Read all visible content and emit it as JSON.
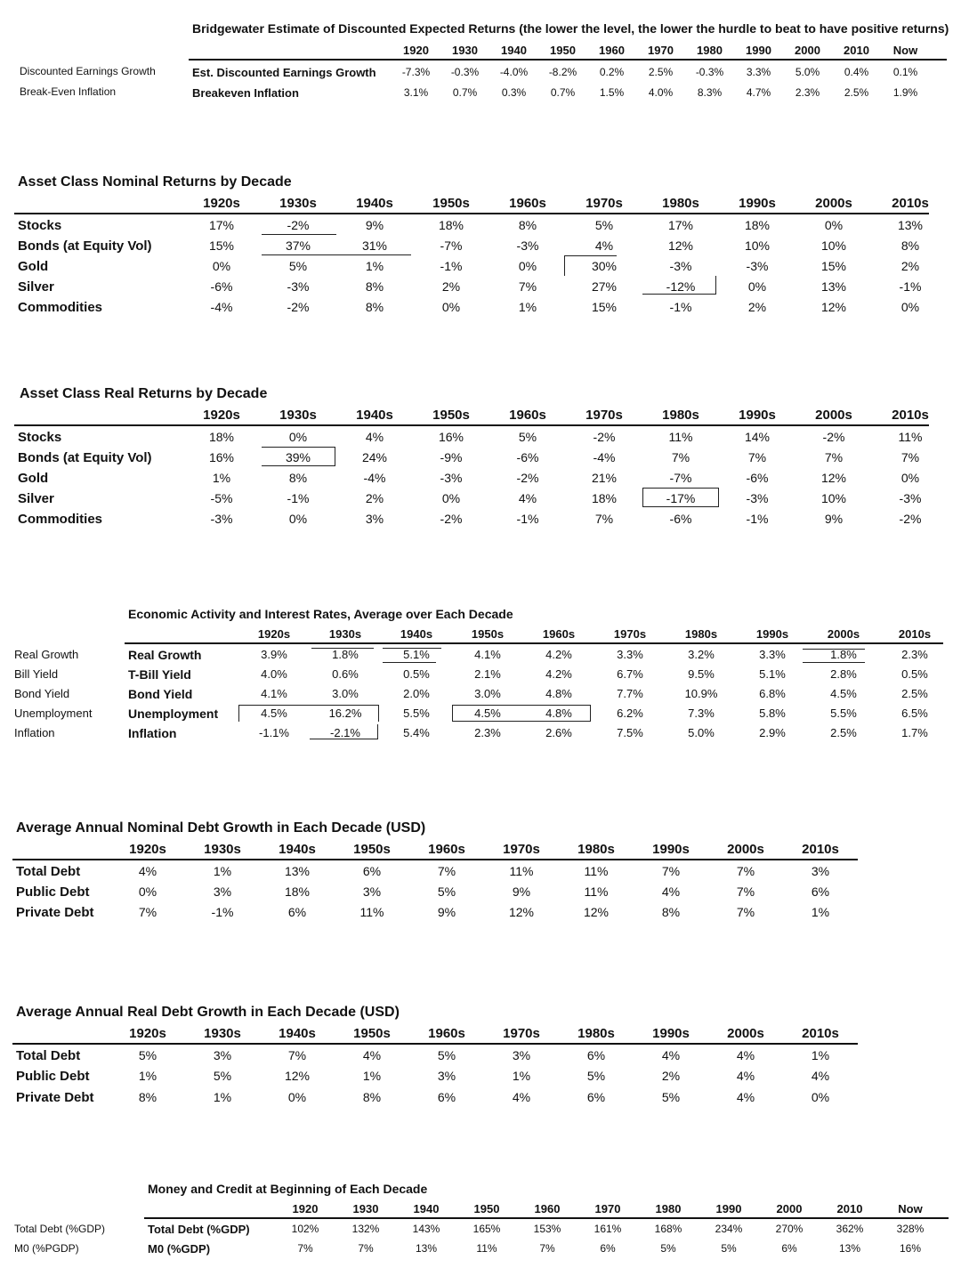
{
  "bridgewater": {
    "title": "Bridgewater Estimate of Discounted Expected Returns (the lower the level, the lower the hurdle to beat to have positive returns)",
    "columns": [
      "1920",
      "1930",
      "1940",
      "1950",
      "1960",
      "1970",
      "1980",
      "1990",
      "2000",
      "2010",
      "Now"
    ],
    "rows": [
      {
        "outer": "Discounted Earnings Growth",
        "label": "Est. Discounted Earnings Growth",
        "values": [
          "-7.3%",
          "-0.3%",
          "-4.0%",
          "-8.2%",
          "0.2%",
          "2.5%",
          "-0.3%",
          "3.3%",
          "5.0%",
          "0.4%",
          "0.1%"
        ]
      },
      {
        "outer": "Break-Even Inflation",
        "label": "Breakeven Inflation",
        "values": [
          "3.1%",
          "0.7%",
          "0.3%",
          "0.7%",
          "1.5%",
          "4.0%",
          "8.3%",
          "4.7%",
          "2.3%",
          "2.5%",
          "1.9%"
        ]
      }
    ]
  },
  "nominal": {
    "title": "Asset Class Nominal Returns by Decade",
    "columns": [
      "1920s",
      "1930s",
      "1940s",
      "1950s",
      "1960s",
      "1970s",
      "1980s",
      "1990s",
      "2000s",
      "2010s"
    ],
    "rows": [
      {
        "label": "Stocks",
        "values": [
          "17%",
          "-2%",
          "9%",
          "18%",
          "8%",
          "5%",
          "17%",
          "18%",
          "0%",
          "13%"
        ]
      },
      {
        "label": "Bonds (at Equity Vol)",
        "values": [
          "15%",
          "37%",
          "31%",
          "-7%",
          "-3%",
          "4%",
          "12%",
          "10%",
          "10%",
          "8%"
        ]
      },
      {
        "label": "Gold",
        "values": [
          "0%",
          "5%",
          "1%",
          "-1%",
          "0%",
          "30%",
          "-3%",
          "-3%",
          "15%",
          "2%"
        ]
      },
      {
        "label": "Silver",
        "values": [
          "-6%",
          "-3%",
          "8%",
          "2%",
          "7%",
          "27%",
          "-12%",
          "0%",
          "13%",
          "-1%"
        ]
      },
      {
        "label": "Commodities",
        "values": [
          "-4%",
          "-2%",
          "8%",
          "0%",
          "1%",
          "15%",
          "-1%",
          "2%",
          "12%",
          "0%"
        ]
      }
    ]
  },
  "real": {
    "title": "Asset Class Real Returns by Decade",
    "columns": [
      "1920s",
      "1930s",
      "1940s",
      "1950s",
      "1960s",
      "1970s",
      "1980s",
      "1990s",
      "2000s",
      "2010s"
    ],
    "rows": [
      {
        "label": "Stocks",
        "values": [
          "18%",
          "0%",
          "4%",
          "16%",
          "5%",
          "-2%",
          "11%",
          "14%",
          "-2%",
          "11%"
        ]
      },
      {
        "label": "Bonds (at Equity Vol)",
        "values": [
          "16%",
          "39%",
          "24%",
          "-9%",
          "-6%",
          "-4%",
          "7%",
          "7%",
          "7%",
          "7%"
        ]
      },
      {
        "label": "Gold",
        "values": [
          "1%",
          "8%",
          "-4%",
          "-3%",
          "-2%",
          "21%",
          "-7%",
          "-6%",
          "12%",
          "0%"
        ]
      },
      {
        "label": "Silver",
        "values": [
          "-5%",
          "-1%",
          "2%",
          "0%",
          "4%",
          "18%",
          "-17%",
          "-3%",
          "10%",
          "-3%"
        ]
      },
      {
        "label": "Commodities",
        "values": [
          "-3%",
          "0%",
          "3%",
          "-2%",
          "-1%",
          "7%",
          "-6%",
          "-1%",
          "9%",
          "-2%"
        ]
      }
    ]
  },
  "economic": {
    "title": "Economic Activity and Interest Rates, Average over Each Decade",
    "columns": [
      "1920s",
      "1930s",
      "1940s",
      "1950s",
      "1960s",
      "1970s",
      "1980s",
      "1990s",
      "2000s",
      "2010s"
    ],
    "rows": [
      {
        "outer": "Real Growth",
        "label": "Real Growth",
        "values": [
          "3.9%",
          "1.8%",
          "5.1%",
          "4.1%",
          "4.2%",
          "3.3%",
          "3.2%",
          "3.3%",
          "1.8%",
          "2.3%"
        ]
      },
      {
        "outer": "Bill Yield",
        "label": "T-Bill Yield",
        "values": [
          "4.0%",
          "0.6%",
          "0.5%",
          "2.1%",
          "4.2%",
          "6.7%",
          "9.5%",
          "5.1%",
          "2.8%",
          "0.5%"
        ]
      },
      {
        "outer": "Bond Yield",
        "label": "Bond Yield",
        "values": [
          "4.1%",
          "3.0%",
          "2.0%",
          "3.0%",
          "4.8%",
          "7.7%",
          "10.9%",
          "6.8%",
          "4.5%",
          "2.5%"
        ]
      },
      {
        "outer": "Unemployment",
        "label": "Unemployment",
        "values": [
          "4.5%",
          "16.2%",
          "5.5%",
          "4.5%",
          "4.8%",
          "6.2%",
          "7.3%",
          "5.8%",
          "5.5%",
          "6.5%"
        ]
      },
      {
        "outer": "Inflation",
        "label": "Inflation",
        "values": [
          "-1.1%",
          "-2.1%",
          "5.4%",
          "2.3%",
          "2.6%",
          "7.5%",
          "5.0%",
          "2.9%",
          "2.5%",
          "1.7%"
        ]
      }
    ]
  },
  "nominal_debt": {
    "title": "Average Annual Nominal Debt Growth in Each Decade (USD)",
    "columns": [
      "1920s",
      "1930s",
      "1940s",
      "1950s",
      "1960s",
      "1970s",
      "1980s",
      "1990s",
      "2000s",
      "2010s"
    ],
    "rows": [
      {
        "label": "Total Debt",
        "values": [
          "4%",
          "1%",
          "13%",
          "6%",
          "7%",
          "11%",
          "11%",
          "7%",
          "7%",
          "3%"
        ]
      },
      {
        "label": "Public Debt",
        "values": [
          "0%",
          "3%",
          "18%",
          "3%",
          "5%",
          "9%",
          "11%",
          "4%",
          "7%",
          "6%"
        ]
      },
      {
        "label": "Private Debt",
        "values": [
          "7%",
          "-1%",
          "6%",
          "11%",
          "9%",
          "12%",
          "12%",
          "8%",
          "7%",
          "1%"
        ]
      }
    ]
  },
  "real_debt": {
    "title": "Average Annual Real Debt Growth in Each Decade (USD)",
    "columns": [
      "1920s",
      "1930s",
      "1940s",
      "1950s",
      "1960s",
      "1970s",
      "1980s",
      "1990s",
      "2000s",
      "2010s"
    ],
    "rows": [
      {
        "label": "Total Debt",
        "values": [
          "5%",
          "3%",
          "7%",
          "4%",
          "5%",
          "3%",
          "6%",
          "4%",
          "4%",
          "1%"
        ]
      },
      {
        "label": "Public Debt",
        "values": [
          "1%",
          "5%",
          "12%",
          "1%",
          "3%",
          "1%",
          "5%",
          "2%",
          "4%",
          "4%"
        ]
      },
      {
        "label": "Private Debt",
        "values": [
          "8%",
          "1%",
          "0%",
          "8%",
          "6%",
          "4%",
          "6%",
          "5%",
          "4%",
          "0%"
        ]
      }
    ]
  },
  "money_credit": {
    "title": "Money and Credit at Beginning of Each Decade",
    "columns": [
      "1920",
      "1930",
      "1940",
      "1950",
      "1960",
      "1970",
      "1980",
      "1990",
      "2000",
      "2010",
      "Now"
    ],
    "rows": [
      {
        "outer": "Total Debt (%GDP)",
        "label": "Total Debt (%GDP)",
        "values": [
          "102%",
          "132%",
          "143%",
          "165%",
          "153%",
          "161%",
          "168%",
          "234%",
          "270%",
          "362%",
          "328%"
        ]
      },
      {
        "outer": "M0 (%PGDP)",
        "label": "M0 (%GDP)",
        "values": [
          "7%",
          "7%",
          "13%",
          "11%",
          "7%",
          "6%",
          "5%",
          "5%",
          "6%",
          "13%",
          "16%"
        ]
      }
    ]
  }
}
